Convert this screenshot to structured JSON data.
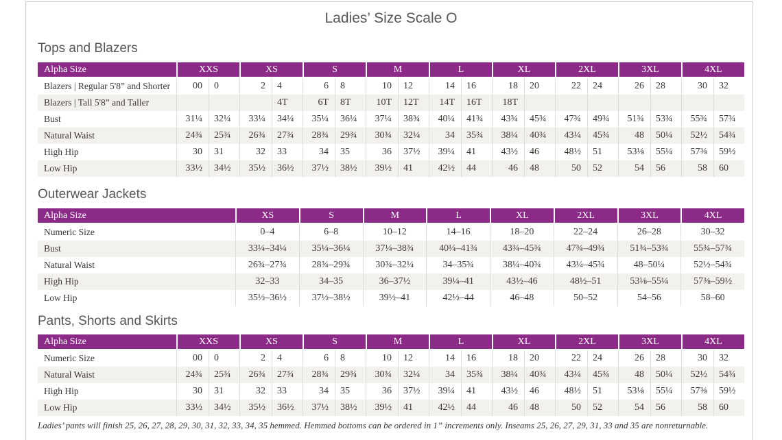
{
  "page": {
    "title": "Ladies’ Size Scale O",
    "footnote": "Ladies’ pants will finish 25, 26, 27, 28, 29, 30, 31, 32, 33, 34, 35 hemmed. Hemmed bottoms can be ordered in 1” increments only. Inseams 25, 26, 27, 29, 31, 33 and 35 are nonreturnable."
  },
  "colors": {
    "header_bg": "#8c2b87",
    "header_text": "#ffffff",
    "stripe": "#f2f1ee",
    "grid_line": "#dedcd9",
    "section_title": "#595755",
    "cell_text": "#3b3733",
    "page_border": "#c9c9c9"
  },
  "tables": [
    {
      "id": "tops-and-blazers",
      "section_title": "Tops and Blazers",
      "layout": "paired",
      "header_label": "Alpha Size",
      "groups": [
        "XXS",
        "XS",
        "S",
        "M",
        "L",
        "XL",
        "2XL",
        "3XL",
        "4XL"
      ],
      "rows": [
        {
          "label": "Blazers  |  Regular 5'8” and Shorter",
          "cells": [
            "00",
            "0",
            "2",
            "4",
            "6",
            "8",
            "10",
            "12",
            "14",
            "16",
            "18",
            "20",
            "22",
            "24",
            "26",
            "28",
            "30",
            "32"
          ]
        },
        {
          "label": "Blazers  |  Tall 5'8” and Taller",
          "cells": [
            "",
            "",
            "",
            "4T",
            "6T",
            "8T",
            "10T",
            "12T",
            "14T",
            "16T",
            "18T",
            "",
            "",
            "",
            "",
            "",
            "",
            ""
          ]
        },
        {
          "label": "Bust",
          "cells": [
            "31¼",
            "32¼",
            "33¼",
            "34¼",
            "35¼",
            "36¼",
            "37¼",
            "38¾",
            "40¼",
            "41¾",
            "43¾",
            "45¾",
            "47¾",
            "49¾",
            "51¾",
            "53¾",
            "55¾",
            "57¾"
          ]
        },
        {
          "label": "Natural Waist",
          "cells": [
            "24¾",
            "25¾",
            "26¾",
            "27¾",
            "28¾",
            "29¾",
            "30¾",
            "32¼",
            "34",
            "35¾",
            "38¼",
            "40¾",
            "43¼",
            "45¾",
            "48",
            "50¼",
            "52½",
            "54¾"
          ]
        },
        {
          "label": "High Hip",
          "cells": [
            "30",
            "31",
            "32",
            "33",
            "34",
            "35",
            "36",
            "37½",
            "39¼",
            "41",
            "43½",
            "46",
            "48½",
            "51",
            "53⅛",
            "55¼",
            "57⅜",
            "59½"
          ]
        },
        {
          "label": "Low Hip",
          "cells": [
            "33½",
            "34½",
            "35½",
            "36½",
            "37½",
            "38½",
            "39½",
            "41",
            "42½",
            "44",
            "46",
            "48",
            "50",
            "52",
            "54",
            "56",
            "58",
            "60"
          ]
        }
      ]
    },
    {
      "id": "outerwear-jackets",
      "section_title": "Outerwear Jackets",
      "layout": "single",
      "header_label": "Alpha Size",
      "groups": [
        "XS",
        "S",
        "M",
        "L",
        "XL",
        "2XL",
        "3XL",
        "4XL"
      ],
      "rows": [
        {
          "label": "Numeric Size",
          "cells": [
            "0–4",
            "6–8",
            "10–12",
            "14–16",
            "18–20",
            "22–24",
            "26–28",
            "30–32"
          ]
        },
        {
          "label": "Bust",
          "cells": [
            "33¼–34¼",
            "35¼–36¼",
            "37¼–38¾",
            "40¼–41¾",
            "43¾–45¾",
            "47¾–49¾",
            "51¾–53¾",
            "55¾–57¾"
          ]
        },
        {
          "label": "Natural Waist",
          "cells": [
            "26¾–27¾",
            "28¾–29¾",
            "30¾–32¼",
            "34–35¾",
            "38¼–40¾",
            "43¼–45¾",
            "48–50¼",
            "52½–54¾"
          ]
        },
        {
          "label": "High Hip",
          "cells": [
            "32–33",
            "34–35",
            "36–37½",
            "39¼–41",
            "43½–46",
            "48½–51",
            "53⅛–55¼",
            "57⅜–59½"
          ]
        },
        {
          "label": "Low Hip",
          "cells": [
            "35½–36½",
            "37½–38½",
            "39½–41",
            "42½–44",
            "46–48",
            "50–52",
            "54–56",
            "58–60"
          ]
        }
      ]
    },
    {
      "id": "pants-shorts-skirts",
      "section_title": "Pants, Shorts and Skirts",
      "layout": "paired",
      "header_label": "Alpha Size",
      "groups": [
        "XXS",
        "XS",
        "S",
        "M",
        "L",
        "XL",
        "2XL",
        "3XL",
        "4XL"
      ],
      "rows": [
        {
          "label": "Numeric Size",
          "cells": [
            "00",
            "0",
            "2",
            "4",
            "6",
            "8",
            "10",
            "12",
            "14",
            "16",
            "18",
            "20",
            "22",
            "24",
            "26",
            "28",
            "30",
            "32"
          ]
        },
        {
          "label": "Natural Waist",
          "cells": [
            "24¾",
            "25¾",
            "26¾",
            "27¾",
            "28¾",
            "29¾",
            "30¾",
            "32¼",
            "34",
            "35¾",
            "38¼",
            "40¾",
            "43¼",
            "45¾",
            "48",
            "50¼",
            "52½",
            "54¾"
          ]
        },
        {
          "label": "High Hip",
          "cells": [
            "30",
            "31",
            "32",
            "33",
            "34",
            "35",
            "36",
            "37½",
            "39¼",
            "41",
            "43½",
            "46",
            "48½",
            "51",
            "53⅛",
            "55¼",
            "57⅜",
            "59½"
          ]
        },
        {
          "label": "Low Hip",
          "cells": [
            "33½",
            "34½",
            "35½",
            "36½",
            "37½",
            "38½",
            "39½",
            "41",
            "42½",
            "44",
            "46",
            "48",
            "50",
            "52",
            "54",
            "56",
            "58",
            "60"
          ]
        }
      ]
    }
  ]
}
